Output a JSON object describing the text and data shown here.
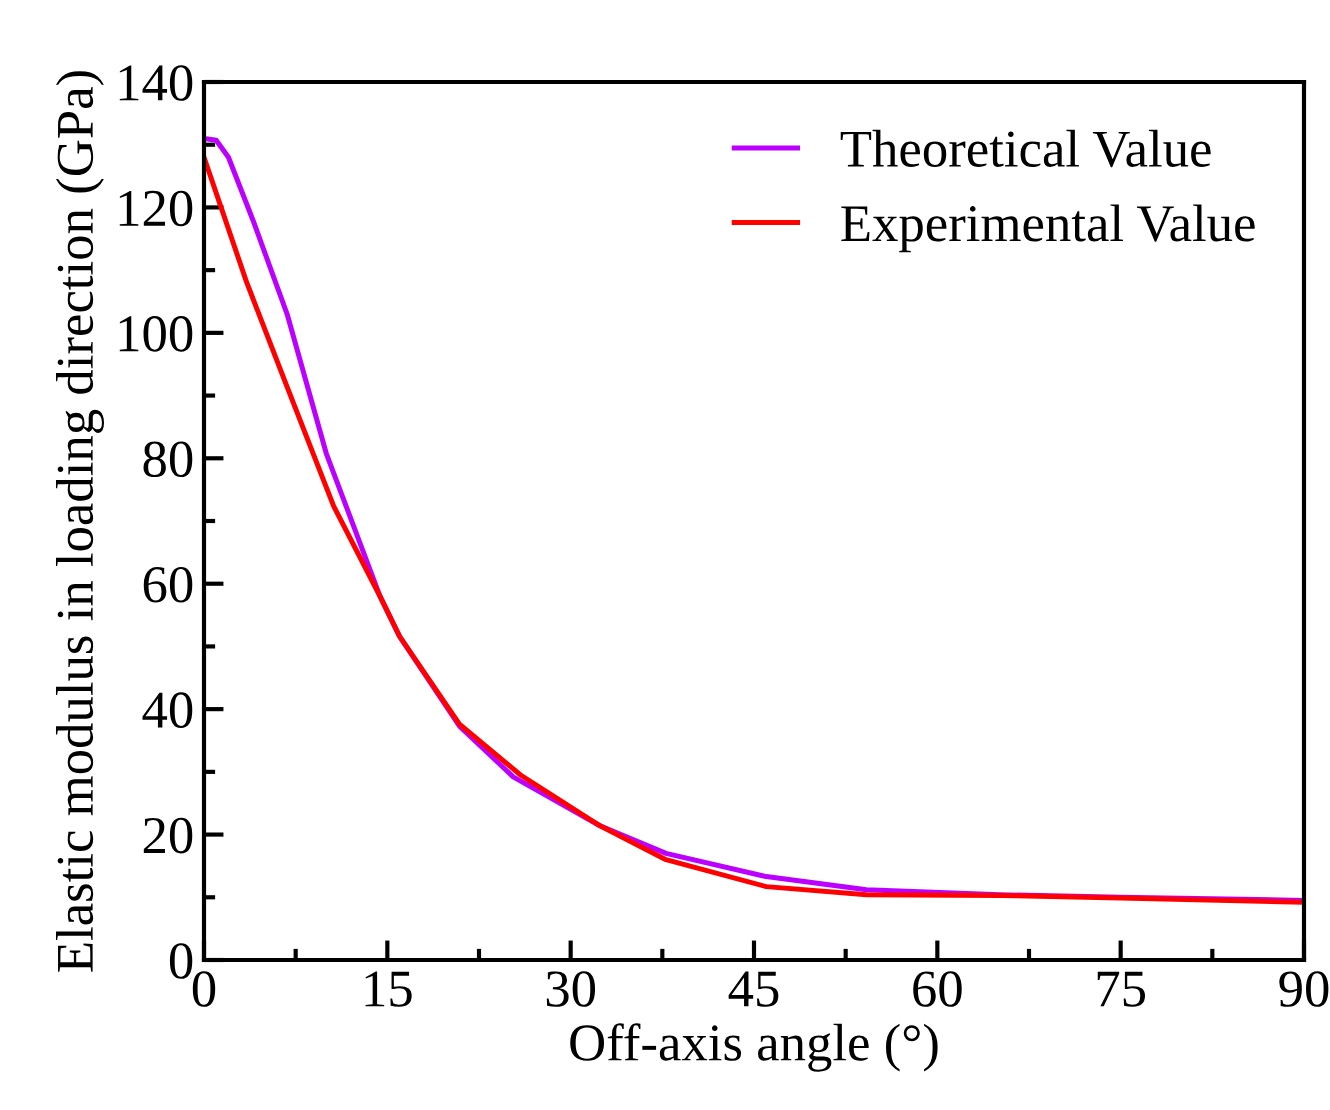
{
  "chart_data": {
    "type": "line",
    "xlabel": "Off-axis angle (°)",
    "ylabel": "Elastic modulus in loading direction (GPa)",
    "xlim": [
      0,
      90
    ],
    "xticks": [
      0,
      15,
      30,
      45,
      60,
      75,
      90
    ],
    "ylim": [
      0,
      140
    ],
    "yticks": [
      0,
      20,
      40,
      60,
      80,
      100,
      120,
      140
    ],
    "grid": false,
    "legend": "top right",
    "series": [
      {
        "name": "Theoretical Value",
        "color": "#bb00ff",
        "x": [
          0,
          1,
          2,
          4,
          6.8,
          10,
          14.4,
          16,
          20.9,
          25.3,
          32.4,
          37.8,
          46,
          54.2,
          65.1,
          75,
          90
        ],
        "values": [
          131,
          130.7,
          128,
          118,
          103,
          80.8,
          58,
          51.6,
          37.3,
          29.2,
          21.4,
          17.0,
          13.3,
          11.2,
          10.4,
          10.0,
          9.5
        ]
      },
      {
        "name": "Experimental Value",
        "color": "#ff0000",
        "x": [
          0,
          3.5,
          6.8,
          10.6,
          14.4,
          16,
          20.9,
          25.9,
          32.4,
          37.8,
          46,
          54.2,
          65.1,
          75,
          90
        ],
        "values": [
          128,
          108,
          91.4,
          72.4,
          58,
          51.6,
          37.6,
          29.5,
          21.4,
          16.0,
          11.7,
          10.4,
          10.3,
          9.9,
          9.2
        ]
      }
    ]
  }
}
